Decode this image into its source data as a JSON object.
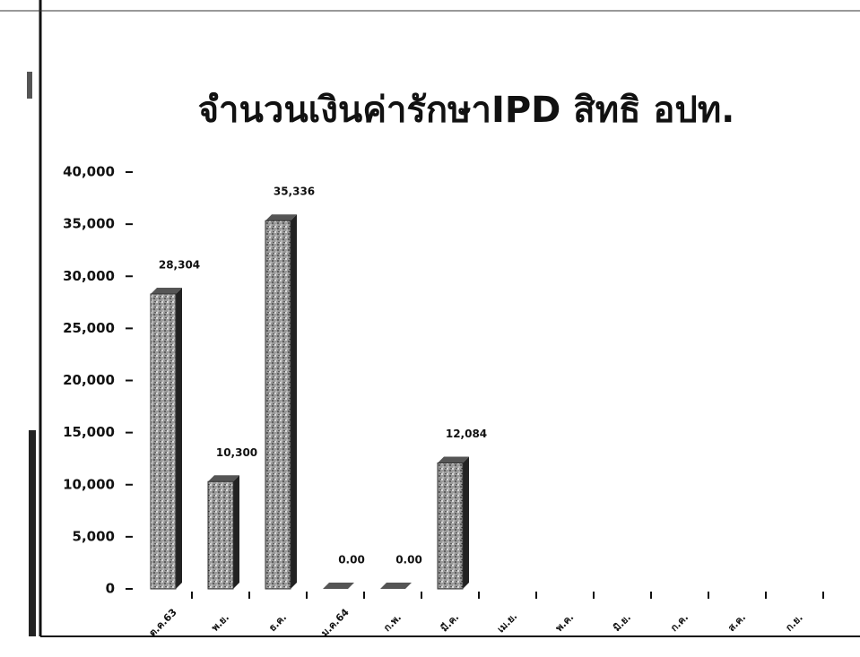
{
  "chart_data": {
    "type": "bar",
    "title": "จำนวนเงินค่ารักษาIPD  สิทธิ อปท.",
    "categories": [
      "ต.ค.63",
      "พ.ย.",
      "ธ.ค.",
      "ม.ค.64",
      "ก.พ.",
      "มี.ค.",
      "เม.ย.",
      "พ.ค.",
      "มิ.ย.",
      "ก.ค.",
      "ส.ค.",
      "ก.ย."
    ],
    "values": [
      28304,
      10300,
      35336,
      0,
      0,
      12084,
      null,
      null,
      null,
      null,
      null,
      null
    ],
    "value_labels": [
      "28,304",
      "10,300",
      "35,336",
      "0.00",
      "0.00",
      "12,084",
      null,
      null,
      null,
      null,
      null,
      null
    ],
    "color": "#8a8a8a",
    "ylim": [
      0,
      40000
    ],
    "yticks": [
      0,
      {
        "value": 5000,
        "label": "5,000"
      },
      {
        "value": 10000,
        "label": "10,000"
      },
      {
        "value": 15000,
        "label": "15,000"
      },
      {
        "value": 20000,
        "label": "20,000"
      },
      {
        "value": 25000,
        "label": "25,000"
      },
      {
        "value": 30000,
        "label": "30,000"
      },
      {
        "value": 35000,
        "label": "35,000"
      },
      {
        "value": 40000,
        "label": "40,000"
      }
    ]
  }
}
